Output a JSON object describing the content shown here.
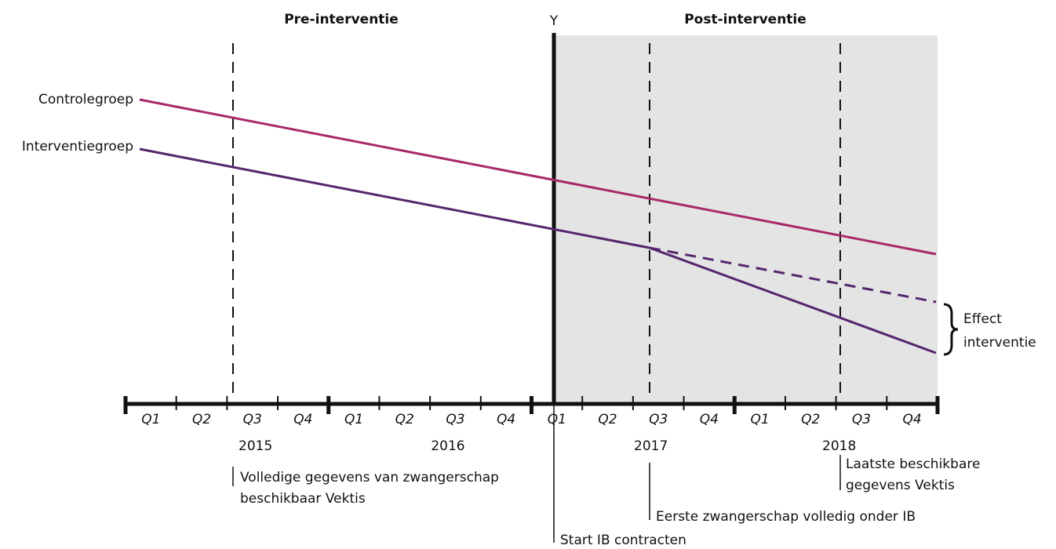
{
  "header": {
    "pre": "Pre-interventie",
    "axis": "Y",
    "post": "Post-interventie"
  },
  "legend": {
    "control": "Controlegroep",
    "intervention": "Interventiegroep",
    "effect": [
      "Effect",
      "interventie"
    ]
  },
  "quarters": [
    "Q1",
    "Q2",
    "Q3",
    "Q4",
    "Q1",
    "Q2",
    "Q3",
    "Q4",
    "Q1",
    "Q2",
    "Q3",
    "Q4",
    "Q1",
    "Q2",
    "Q3",
    "Q4"
  ],
  "years": [
    "2015",
    "2016",
    "2017",
    "2018"
  ],
  "annotations": {
    "data_full": [
      "Volledige gegevens van zwangerschap",
      "beschikbaar Vektis"
    ],
    "start": [
      "Start IB contracten"
    ],
    "first": [
      "Eerste zwangerschap volledig onder IB"
    ],
    "last": [
      "Laatste beschikbare",
      "gegevens Vektis"
    ]
  }
}
